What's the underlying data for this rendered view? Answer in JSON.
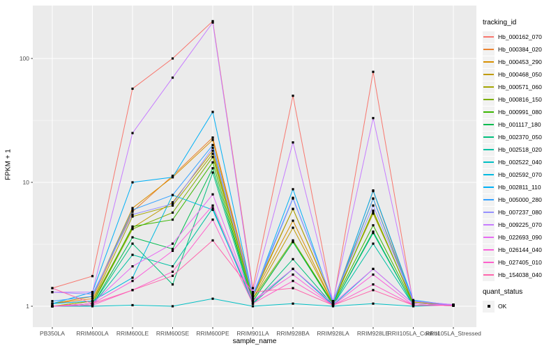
{
  "chart": {
    "x_axis_title": "sample_name",
    "y_axis_title": "FPKM + 1",
    "tracking_legend_title": "tracking_id",
    "quant_legend_title": "quant_status",
    "quant_legend_item": "OK"
  },
  "chart_data": {
    "type": "line",
    "title": "",
    "xlabel": "sample_name",
    "ylabel": "FPKM + 1",
    "y_scale": "log10",
    "y_ticks": [
      1,
      10,
      100
    ],
    "ylim": [
      1,
      260
    ],
    "grid": true,
    "panel_bg": "#EBEBEB",
    "grid_color": "#FFFFFF",
    "tick_label_color": "#4D4D4D",
    "point_color": "#000000",
    "legend_position": "right",
    "legend_title": "tracking_id",
    "quant_status_legend": {
      "title": "quant_status",
      "items": [
        "OK"
      ]
    },
    "categories": [
      "PB350LA",
      "RRIM600LA",
      "RRIM600LE",
      "RRIM600SE",
      "RRIM600PE",
      "RRIM901LA",
      "RRIM928BA",
      "RRIM928LA",
      "RRIM928LE",
      "RRII105LA_Control",
      "RRII105LA_Stressed"
    ],
    "series": [
      {
        "name": "Hb_000162_070",
        "color": "#F8766D",
        "values": [
          1.4,
          1.75,
          57,
          100,
          200,
          1.4,
          50,
          1.05,
          78,
          1.05,
          1.03
        ]
      },
      {
        "name": "Hb_000384_020",
        "color": "#EA8331",
        "values": [
          1.05,
          1.15,
          5.8,
          11.3,
          23,
          1.25,
          6.1,
          1.08,
          8.5,
          1.08,
          1.03
        ]
      },
      {
        "name": "Hb_000453_290",
        "color": "#D89000",
        "values": [
          1.05,
          1.2,
          6.2,
          11,
          22,
          1.2,
          4.9,
          1.05,
          7.4,
          1.05,
          1.02
        ]
      },
      {
        "name": "Hb_000468_050",
        "color": "#C09B00",
        "values": [
          1.0,
          1.1,
          4.3,
          6.9,
          18,
          1.15,
          4.3,
          1.05,
          5.8,
          1.05,
          1.02
        ]
      },
      {
        "name": "Hb_000571_060",
        "color": "#A3A500",
        "values": [
          1.0,
          1.1,
          5.3,
          6.5,
          17,
          1.2,
          6.1,
          1.1,
          5.6,
          1.08,
          1.02
        ]
      },
      {
        "name": "Hb_000816_150",
        "color": "#7CAE00",
        "values": [
          1.0,
          1.05,
          4.2,
          5.7,
          16,
          1.15,
          3.4,
          1.05,
          5.9,
          1.05,
          1.02
        ]
      },
      {
        "name": "Hb_000991_080",
        "color": "#39B600",
        "values": [
          1.0,
          1.05,
          4.4,
          5.0,
          14.5,
          1.1,
          3.3,
          1.05,
          4.5,
          1.05,
          1.02
        ]
      },
      {
        "name": "Hb_001117_180",
        "color": "#00BB4E",
        "values": [
          1.0,
          1.02,
          3.6,
          2.9,
          13,
          1.1,
          3.3,
          1.02,
          4.0,
          1.02,
          1.01
        ]
      },
      {
        "name": "Hb_002370_050",
        "color": "#00BF7D",
        "values": [
          1.0,
          1.02,
          3.2,
          1.5,
          12,
          1.05,
          2.4,
          1.02,
          3.9,
          1.02,
          1.01
        ]
      },
      {
        "name": "Hb_002518_020",
        "color": "#00C1A3",
        "values": [
          1.0,
          1.02,
          2.6,
          2.1,
          6.2,
          1.05,
          2.0,
          1.02,
          3.2,
          1.02,
          1.01
        ]
      },
      {
        "name": "Hb_002522_040",
        "color": "#00BFC4",
        "values": [
          1.0,
          1.0,
          1.02,
          1.0,
          1.15,
          1.0,
          1.05,
          1.0,
          1.05,
          1.0,
          1.02
        ]
      },
      {
        "name": "Hb_002592_070",
        "color": "#00BAE0",
        "values": [
          1.05,
          1.1,
          1.7,
          7.9,
          6.0,
          1.1,
          2.0,
          1.02,
          2.0,
          1.05,
          1.02
        ]
      },
      {
        "name": "Hb_002811_110",
        "color": "#00B0F6",
        "values": [
          1.05,
          1.3,
          10,
          11,
          37,
          1.2,
          8.8,
          1.05,
          8.6,
          1.12,
          1.02
        ]
      },
      {
        "name": "Hb_005000_280",
        "color": "#35A2FF",
        "values": [
          1.1,
          1.2,
          6.0,
          7.9,
          20,
          1.2,
          7.4,
          1.1,
          7.4,
          1.1,
          1.02
        ]
      },
      {
        "name": "Hb_007237_080",
        "color": "#9590FF",
        "values": [
          1.3,
          1.25,
          5.5,
          6.7,
          19,
          1.25,
          7.5,
          1.1,
          6.5,
          1.1,
          1.03
        ]
      },
      {
        "name": "Hb_009225_070",
        "color": "#C77CFF",
        "values": [
          1.3,
          1.3,
          25,
          70,
          195,
          1.3,
          21,
          1.1,
          33,
          1.1,
          1.03
        ]
      },
      {
        "name": "Hb_022693_090",
        "color": "#E76BF3",
        "values": [
          1.0,
          1.05,
          2.1,
          3.2,
          8.0,
          1.1,
          2.0,
          1.05,
          2.0,
          1.05,
          1.02
        ]
      },
      {
        "name": "Hb_026144_040",
        "color": "#FA62DB",
        "values": [
          1.0,
          1.05,
          1.6,
          2.8,
          6.5,
          1.1,
          1.8,
          1.02,
          1.8,
          1.02,
          1.02
        ]
      },
      {
        "name": "Hb_027405_010",
        "color": "#FF61CC",
        "values": [
          1.0,
          1.02,
          1.35,
          1.9,
          5.0,
          1.05,
          1.6,
          1.02,
          1.5,
          1.02,
          1.01
        ]
      },
      {
        "name": "Hb_154038_040",
        "color": "#FF65AC",
        "values": [
          1.4,
          1.05,
          1.35,
          1.76,
          3.4,
          1.3,
          1.4,
          1.02,
          1.35,
          1.02,
          1.01
        ]
      }
    ]
  }
}
